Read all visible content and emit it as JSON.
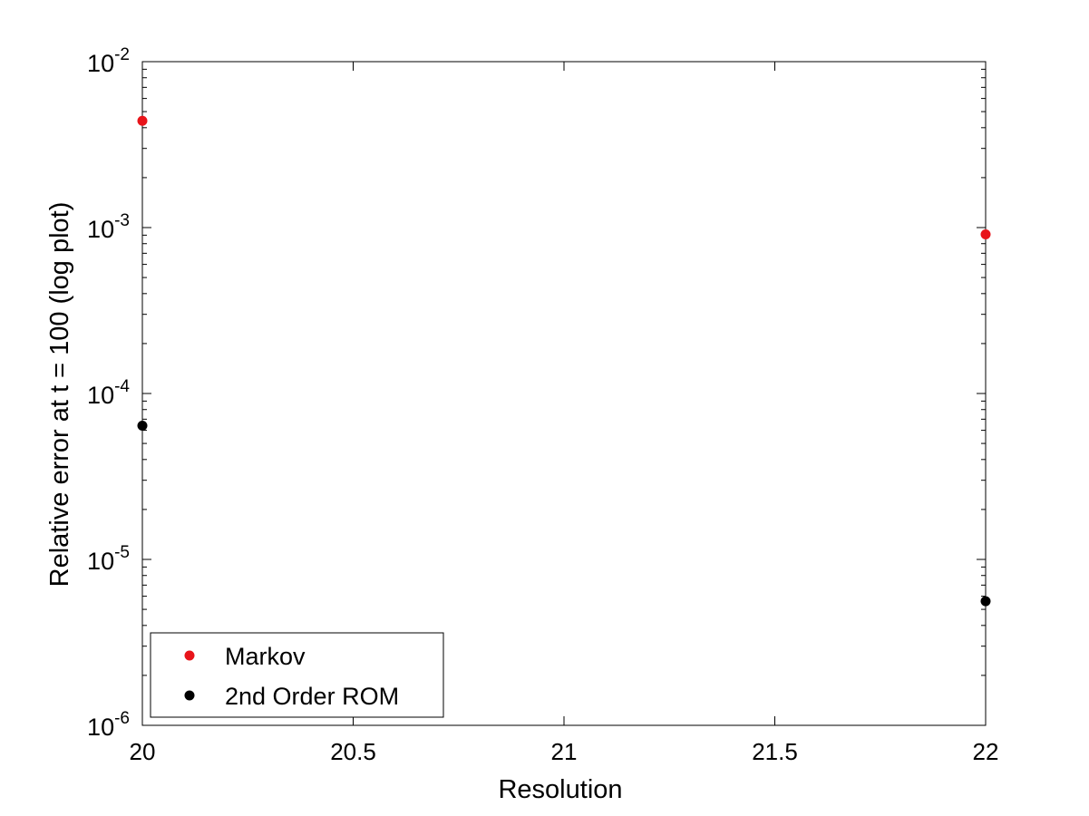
{
  "chart_data": {
    "type": "scatter",
    "title": "",
    "xlabel": "Resolution",
    "ylabel": "Relative error at t = 100 (log plot)",
    "xlim": [
      20,
      22
    ],
    "ylim": [
      1e-06,
      0.01
    ],
    "yscale": "log",
    "grid": false,
    "legend_position": "bottom-left",
    "x_ticks": [
      {
        "value": 20,
        "label": "20"
      },
      {
        "value": 20.5,
        "label": "20.5"
      },
      {
        "value": 21,
        "label": "21"
      },
      {
        "value": 21.5,
        "label": "21.5"
      },
      {
        "value": 22,
        "label": "22"
      }
    ],
    "y_ticks": [
      {
        "value": 1e-06,
        "base": "10",
        "exp": "-6"
      },
      {
        "value": 1e-05,
        "base": "10",
        "exp": "-5"
      },
      {
        "value": 0.0001,
        "base": "10",
        "exp": "-4"
      },
      {
        "value": 0.001,
        "base": "10",
        "exp": "-3"
      },
      {
        "value": 0.01,
        "base": "10",
        "exp": "-2"
      }
    ],
    "series": [
      {
        "name": "Markov",
        "color": "#e8141a",
        "x": [
          20,
          22
        ],
        "y": [
          0.0044,
          0.00091
        ]
      },
      {
        "name": "2nd Order ROM",
        "color": "#000000",
        "x": [
          20,
          22
        ],
        "y": [
          6.4e-05,
          5.6e-06
        ]
      }
    ]
  }
}
